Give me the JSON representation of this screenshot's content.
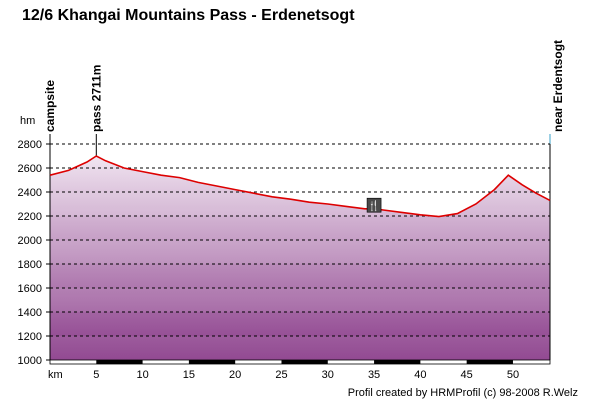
{
  "chart_data": {
    "type": "area",
    "title": "12/6 Khangai Mountains Pass - Erdenetsogt",
    "xlabel": "km",
    "ylabel": "hm",
    "xlim": [
      0,
      54
    ],
    "ylim": [
      1000,
      2800
    ],
    "x_ticks": [
      5,
      10,
      15,
      20,
      25,
      30,
      35,
      40,
      45,
      50
    ],
    "x_tick_labels": [
      "5",
      "10",
      "15",
      "20",
      "25",
      "30",
      "35",
      "40",
      "45",
      "50"
    ],
    "y_ticks": [
      1000,
      1200,
      1400,
      1600,
      1800,
      2000,
      2200,
      2400,
      2600,
      2800
    ],
    "y_tick_labels": [
      "1000",
      "1200",
      "1400",
      "1600",
      "1800",
      "2000",
      "2200",
      "2400",
      "2600",
      "2800"
    ],
    "grid": true,
    "line_color": "#dd0000",
    "fill_top_color": "#f6eef6",
    "fill_bottom_color": "#8a3c8a",
    "series": [
      {
        "x": [
          0,
          2,
          4,
          5,
          6,
          8,
          10,
          12,
          14,
          16,
          18,
          20,
          22,
          24,
          26,
          28,
          30,
          32,
          34,
          35,
          36,
          38,
          40,
          42,
          44,
          46,
          48,
          49.5,
          51,
          52.5,
          54
        ],
        "y": [
          2540,
          2580,
          2650,
          2700,
          2660,
          2600,
          2570,
          2540,
          2520,
          2480,
          2450,
          2420,
          2390,
          2360,
          2340,
          2315,
          2300,
          2280,
          2260,
          2260,
          2250,
          2230,
          2210,
          2195,
          2220,
          2300,
          2420,
          2540,
          2460,
          2390,
          2330
        ]
      }
    ],
    "waypoints": [
      {
        "x": 0,
        "label": "campsite"
      },
      {
        "x": 5,
        "label": "pass 2711m"
      },
      {
        "x": 54,
        "label": "near Erdentsogt"
      }
    ],
    "annotations": [
      {
        "x": 35,
        "y": 2290,
        "icon": "restaurant-icon",
        "symbol": "🍴"
      }
    ],
    "footer": "Profil created by HRMProfil (c) 98-2008 R.Welz"
  }
}
